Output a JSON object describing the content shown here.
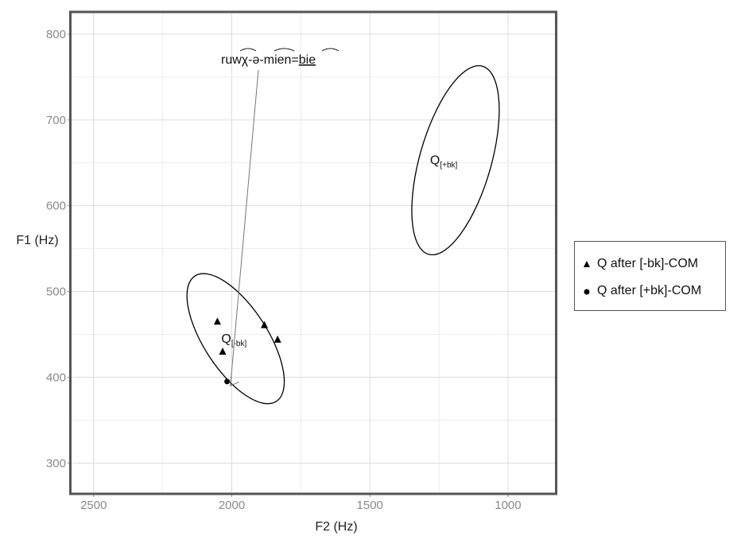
{
  "chart_data": {
    "type": "scatter",
    "xlabel": "F2 (Hz)",
    "ylabel": "F1 (Hz)",
    "xlim": [
      2580,
      830
    ],
    "ylim": [
      825,
      265
    ],
    "x_reversed": true,
    "y_reversed": true,
    "xticks": [
      2500,
      2000,
      1500,
      1000
    ],
    "yticks": [
      300,
      400,
      500,
      600,
      700,
      800
    ],
    "grid": true,
    "legend_position": "right",
    "series": [
      {
        "name": "Q after [-bk]-COM",
        "marker": "triangle",
        "points": [
          {
            "x": 2033,
            "y": 430
          },
          {
            "x": 2052,
            "y": 465
          },
          {
            "x": 1882,
            "y": 461
          },
          {
            "x": 1834,
            "y": 444
          }
        ]
      },
      {
        "name": "Q after [+bk]-COM",
        "marker": "circle",
        "points": [
          {
            "x": 2017,
            "y": 395
          }
        ]
      }
    ],
    "ellipses": [
      {
        "label_main": "Q",
        "label_sub": "[-bk]",
        "cx": 1986,
        "cy": 445,
        "rx": 40,
        "ry": 94,
        "angle_deg": -33
      },
      {
        "label_main": "Q",
        "label_sub": "[+bk]",
        "cx": 1190,
        "cy": 653,
        "rx": 45,
        "ry": 123,
        "angle_deg": 16
      }
    ],
    "annotation": {
      "text": "ruwχ-ə-mien=bie",
      "underlined_part": "bie",
      "target": {
        "x": 2005,
        "y": 390
      }
    }
  }
}
